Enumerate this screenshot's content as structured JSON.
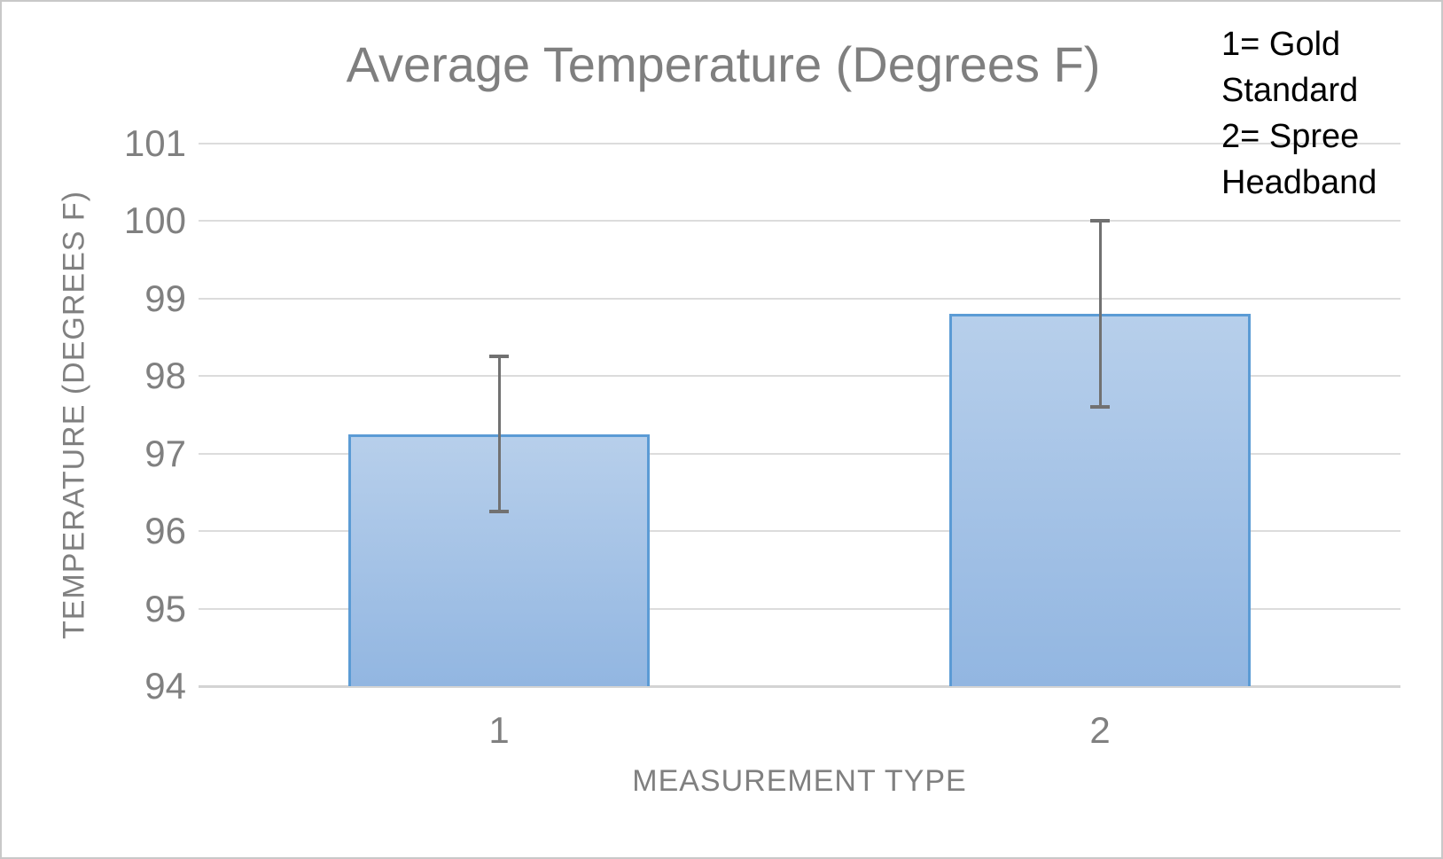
{
  "chart_data": {
    "type": "bar",
    "title": "Average Temperature (Degrees F)",
    "xlabel": "MEASUREMENT TYPE",
    "ylabel": "TEMPERATURE (DEGREES F)",
    "categories": [
      "1",
      "2"
    ],
    "values": [
      97.25,
      98.8
    ],
    "error_bars": [
      {
        "low": 96.25,
        "high": 98.25
      },
      {
        "low": 97.6,
        "high": 100.0
      }
    ],
    "ylim": [
      94,
      101
    ],
    "yticks": [
      94,
      95,
      96,
      97,
      98,
      99,
      100,
      101
    ],
    "grid": true,
    "legend_position": "none",
    "annotation_text": "1= Gold Standard 2= Spree Headband"
  },
  "annotation": {
    "lines": [
      "1= Gold",
      "Standard",
      "2= Spree",
      "Headband"
    ]
  },
  "colors": {
    "bar_fill_top": "#b7cfeb",
    "bar_fill_bottom": "#92b6e1",
    "bar_border": "#5b9bd5",
    "gridline": "#dcdcdc",
    "axis_line": "#d4d4d4",
    "error_bar": "#717171",
    "axis_text": "#808080",
    "title_text": "#7f7f7f",
    "annotation_text": "#000000",
    "frame_border": "#c8c8c8",
    "background": "#ffffff"
  }
}
